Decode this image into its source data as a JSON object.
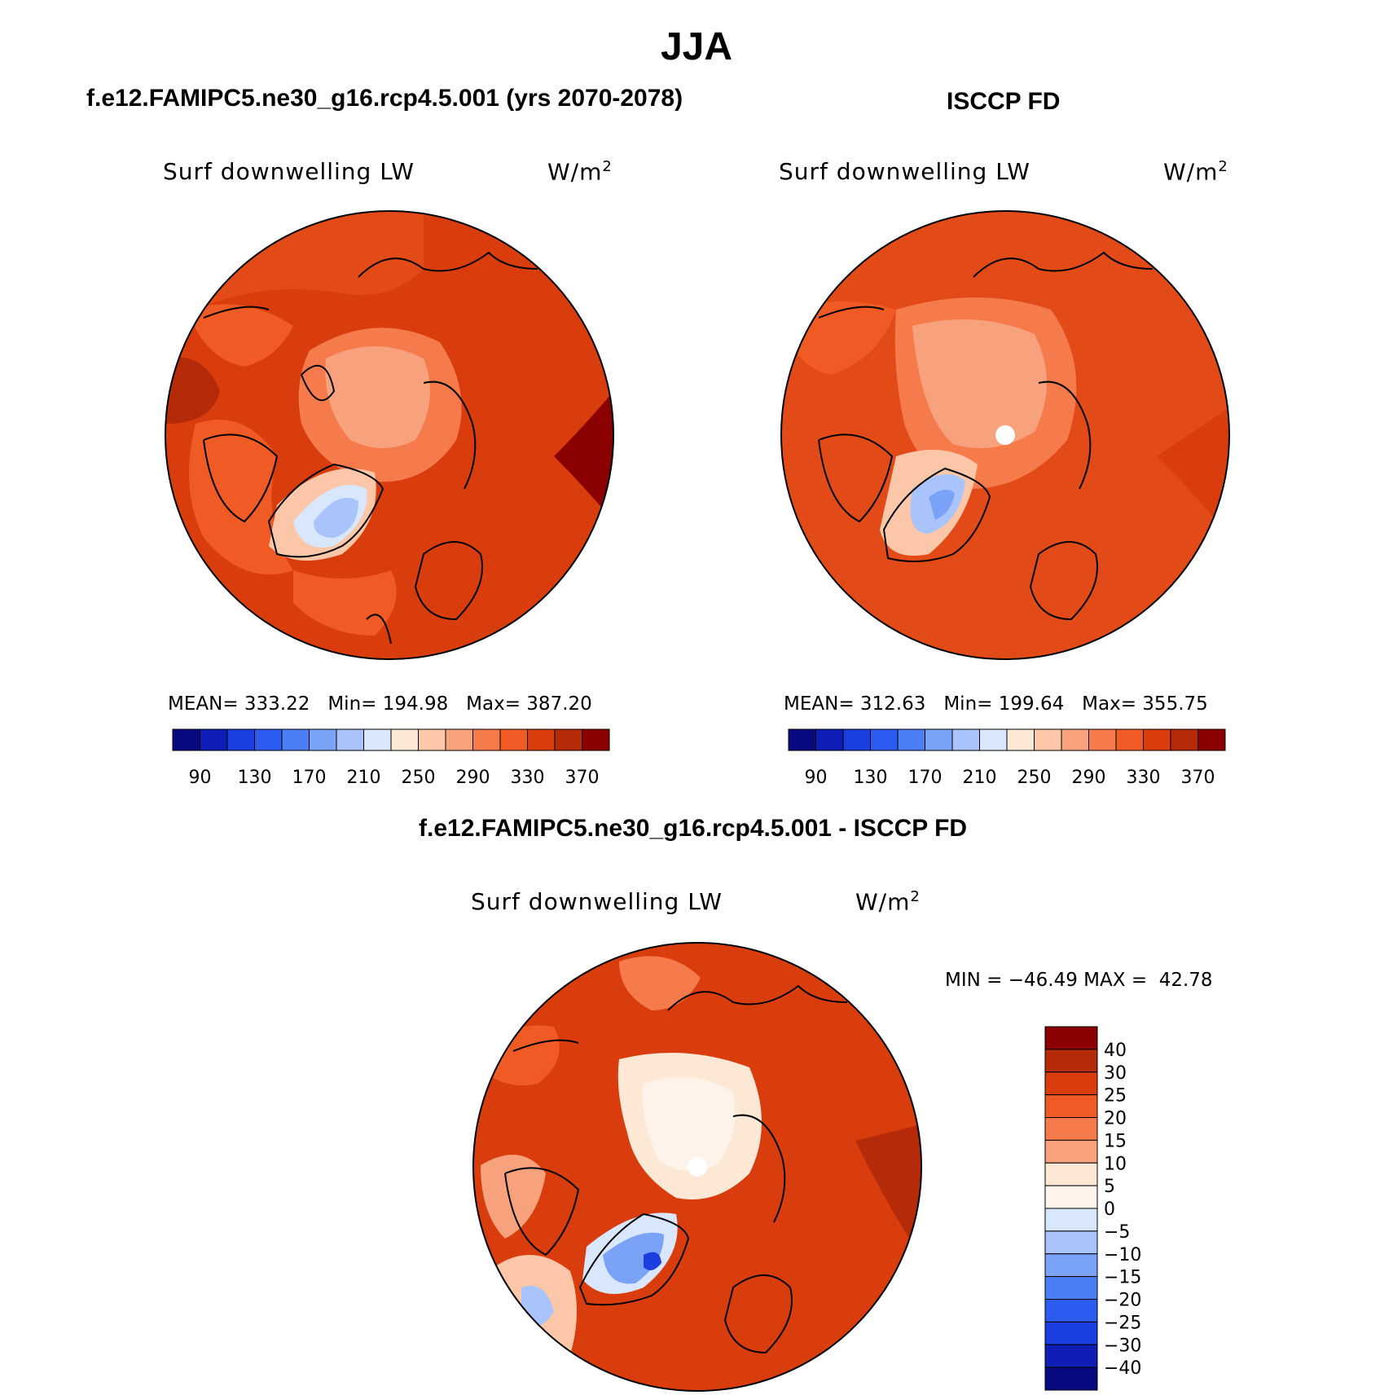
{
  "title": "JJA",
  "panels": [
    {
      "title": "f.e12.FAMIPC5.ne30_g16.rcp4.5.001 (yrs 2070-2078)",
      "variable": "Surf downwelling LW",
      "units": "W/m",
      "units_exp": "2",
      "stats": {
        "mean_label": "MEAN=",
        "mean": "333.22",
        "min_label": "Min=",
        "min": "194.98",
        "max_label": "Max=",
        "max": "387.20"
      }
    },
    {
      "title": "ISCCP FD",
      "variable": "Surf downwelling LW",
      "units": "W/m",
      "units_exp": "2",
      "stats": {
        "mean_label": "MEAN=",
        "mean": "312.63",
        "min_label": "Min=",
        "min": "199.64",
        "max_label": "Max=",
        "max": "355.75"
      }
    },
    {
      "title": "f.e12.FAMIPC5.ne30_g16.rcp4.5.001 - ISCCP FD",
      "variable": "Surf downwelling LW",
      "units": "W/m",
      "units_exp": "2",
      "stats": {
        "min_label": "MIN =",
        "min": "−46.49",
        "max_label": "MAX =",
        "max": "42.78"
      }
    }
  ],
  "colorbar_abs": {
    "ticks": [
      "90",
      "130",
      "170",
      "210",
      "250",
      "290",
      "330",
      "370"
    ],
    "colors": [
      "#0a0a80",
      "#0f1eb4",
      "#1a3ee0",
      "#2c5cf0",
      "#4a7ff5",
      "#7aa3f7",
      "#a9c4fa",
      "#d9e7fc",
      "#fde8d6",
      "#fbc7a8",
      "#f7a27c",
      "#f57a4c",
      "#f05a24",
      "#d93d0e",
      "#b52a08",
      "#8b0000"
    ]
  },
  "colorbar_diff": {
    "ticks": [
      "40",
      "30",
      "25",
      "20",
      "15",
      "10",
      "5",
      "0",
      "−5",
      "−10",
      "−15",
      "−20",
      "−25",
      "−30",
      "−40"
    ],
    "colors": [
      "#8b0000",
      "#b52a08",
      "#d93d0e",
      "#f05a24",
      "#f57a4c",
      "#f7a27c",
      "#fde8d6",
      "#fef3ea",
      "#d9e7fc",
      "#a9c4fa",
      "#7aa3f7",
      "#4a7ff5",
      "#2c5cf0",
      "#1a3ee0",
      "#0f1eb4",
      "#0a0a80"
    ]
  }
}
